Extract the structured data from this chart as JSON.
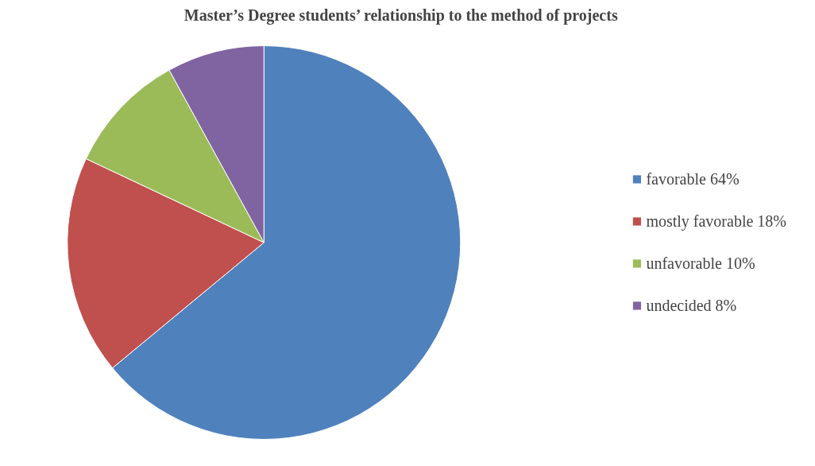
{
  "chart_data": {
    "type": "pie",
    "title": "Master’s Degree students’ relationship to the method of projects",
    "categories": [
      "favorable 64%",
      "mostly favorable 18%",
      "unfavorable 10%",
      "undecided 8%"
    ],
    "values": [
      64,
      18,
      10,
      8
    ],
    "colors": [
      "#4f81bd",
      "#c0504d",
      "#9bbb59",
      "#8064a2"
    ],
    "legend": "right"
  }
}
